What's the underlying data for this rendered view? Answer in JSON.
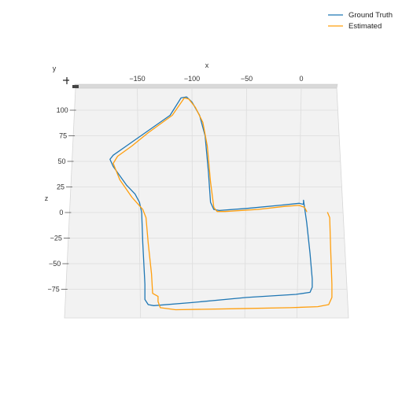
{
  "chart_data": {
    "type": "line",
    "title": "",
    "xlabel": "x",
    "ylabel": "y",
    "zlabel": "z",
    "x_ticks": [
      -150,
      -100,
      -50,
      0
    ],
    "z_ticks": [
      100,
      75,
      50,
      25,
      0,
      -25,
      -50,
      -75
    ],
    "x_tick_labels": [
      "−150",
      "−100",
      "−50",
      "0"
    ],
    "z_tick_labels": [
      "100",
      "75",
      "50",
      "25",
      "0",
      "−25",
      "−50",
      "−75"
    ],
    "xlim": [
      -207,
      37
    ],
    "zlim": [
      -100,
      122
    ],
    "grid": true,
    "legend_position": "top-right",
    "series": [
      {
        "name": "Ground Truth",
        "color": "#1f77b4",
        "points": [
          [
            2,
            12
          ],
          [
            5,
            -10
          ],
          [
            8,
            -40
          ],
          [
            10,
            -65
          ],
          [
            10,
            -73
          ],
          [
            8,
            -78
          ],
          [
            -5,
            -80
          ],
          [
            -50,
            -83
          ],
          [
            -100,
            -88
          ],
          [
            -135,
            -91
          ],
          [
            -140,
            -90
          ],
          [
            -143,
            -85
          ],
          [
            -143,
            -70
          ],
          [
            -145,
            -30
          ],
          [
            -146,
            0
          ],
          [
            -148,
            10
          ],
          [
            -152,
            18
          ],
          [
            -160,
            27
          ],
          [
            -172,
            45
          ],
          [
            -175,
            52
          ],
          [
            -172,
            56
          ],
          [
            -160,
            65
          ],
          [
            -140,
            80
          ],
          [
            -120,
            95
          ],
          [
            -110,
            112
          ],
          [
            -105,
            113
          ],
          [
            -100,
            108
          ],
          [
            -93,
            95
          ],
          [
            -88,
            75
          ],
          [
            -85,
            40
          ],
          [
            -83,
            10
          ],
          [
            -80,
            3
          ],
          [
            -75,
            2
          ],
          [
            -50,
            4
          ],
          [
            -20,
            7
          ],
          [
            -2,
            9
          ],
          [
            2,
            8
          ],
          [
            2,
            12
          ]
        ]
      },
      {
        "name": "Estimated",
        "color": "#ff9f0e",
        "points": [
          [
            24,
            0
          ],
          [
            26,
            -5
          ],
          [
            27,
            -40
          ],
          [
            28,
            -70
          ],
          [
            28,
            -83
          ],
          [
            25,
            -90
          ],
          [
            15,
            -92
          ],
          [
            -10,
            -93
          ],
          [
            -60,
            -94
          ],
          [
            -115,
            -95
          ],
          [
            -129,
            -93
          ],
          [
            -131,
            -87
          ],
          [
            -131,
            -82
          ],
          [
            -136,
            -79
          ],
          [
            -137,
            -60
          ],
          [
            -140,
            -30
          ],
          [
            -142,
            -5
          ],
          [
            -145,
            3
          ],
          [
            -155,
            15
          ],
          [
            -166,
            32
          ],
          [
            -172,
            48
          ],
          [
            -168,
            55
          ],
          [
            -155,
            65
          ],
          [
            -140,
            78
          ],
          [
            -118,
            95
          ],
          [
            -107,
            112
          ],
          [
            -103,
            111
          ],
          [
            -97,
            103
          ],
          [
            -90,
            88
          ],
          [
            -86,
            65
          ],
          [
            -83,
            30
          ],
          [
            -80,
            5
          ],
          [
            -77,
            1
          ],
          [
            -70,
            1
          ],
          [
            -40,
            3
          ],
          [
            -15,
            6
          ],
          [
            -2,
            7
          ],
          [
            3,
            5
          ],
          [
            5,
            1
          ]
        ]
      }
    ]
  }
}
